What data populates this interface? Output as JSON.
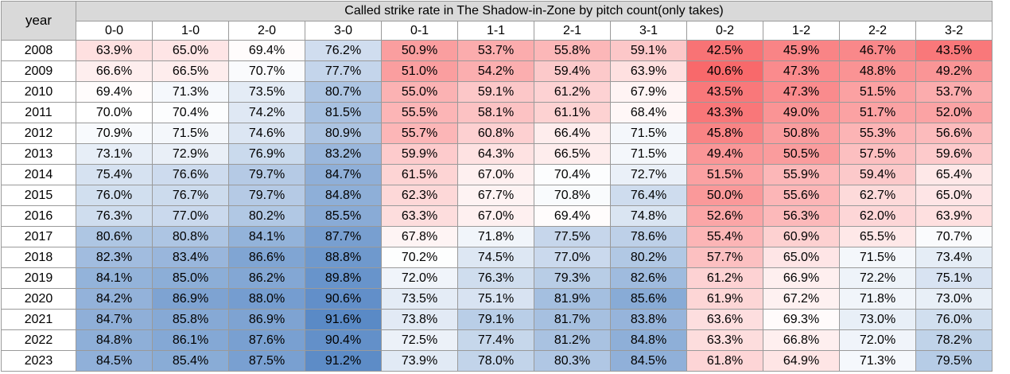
{
  "chart_data": {
    "type": "heatmap",
    "title": "Called strike rate in The Shadow-in-Zone by pitch count(only takes)",
    "row_header": "year",
    "columns": [
      "0-0",
      "1-0",
      "2-0",
      "3-0",
      "0-1",
      "1-1",
      "2-1",
      "3-1",
      "0-2",
      "1-2",
      "2-2",
      "3-2"
    ],
    "rows": [
      "2008",
      "2009",
      "2010",
      "2011",
      "2012",
      "2013",
      "2014",
      "2015",
      "2016",
      "2017",
      "2018",
      "2019",
      "2020",
      "2021",
      "2022",
      "2023"
    ],
    "values": [
      [
        63.9,
        65.0,
        69.4,
        76.2,
        50.9,
        53.7,
        55.8,
        59.1,
        42.5,
        45.9,
        46.7,
        43.5
      ],
      [
        66.6,
        66.5,
        70.7,
        77.7,
        51.0,
        54.2,
        59.4,
        63.9,
        40.6,
        47.3,
        48.8,
        49.2
      ],
      [
        69.4,
        71.3,
        73.5,
        80.7,
        55.0,
        59.1,
        61.2,
        67.9,
        43.5,
        47.3,
        51.5,
        53.7
      ],
      [
        70.0,
        70.4,
        74.2,
        81.5,
        55.5,
        58.1,
        61.1,
        68.4,
        43.3,
        49.0,
        51.7,
        52.0
      ],
      [
        70.9,
        71.5,
        74.6,
        80.9,
        55.7,
        60.8,
        66.4,
        71.5,
        45.8,
        50.8,
        55.3,
        56.6
      ],
      [
        73.1,
        72.9,
        76.9,
        83.2,
        59.9,
        64.3,
        66.5,
        71.5,
        49.4,
        50.5,
        57.5,
        59.6
      ],
      [
        75.4,
        76.6,
        79.7,
        84.7,
        61.5,
        67.0,
        70.4,
        72.7,
        51.5,
        55.9,
        59.4,
        65.4
      ],
      [
        76.0,
        76.7,
        79.7,
        84.8,
        62.3,
        67.7,
        70.8,
        76.4,
        50.0,
        55.6,
        62.7,
        65.0
      ],
      [
        76.3,
        77.0,
        80.2,
        85.5,
        63.3,
        67.0,
        69.4,
        74.8,
        52.6,
        56.3,
        62.0,
        63.9
      ],
      [
        80.6,
        80.8,
        84.1,
        87.7,
        67.8,
        71.8,
        77.5,
        78.6,
        55.4,
        60.9,
        65.5,
        70.7
      ],
      [
        82.3,
        83.4,
        86.6,
        88.8,
        70.2,
        74.5,
        77.0,
        80.2,
        57.7,
        65.0,
        71.5,
        73.4
      ],
      [
        84.1,
        85.0,
        86.2,
        89.8,
        72.0,
        76.3,
        79.3,
        82.6,
        61.2,
        66.9,
        72.2,
        75.1
      ],
      [
        84.2,
        86.9,
        88.0,
        90.6,
        73.5,
        75.1,
        81.9,
        85.6,
        61.9,
        67.2,
        71.8,
        73.0
      ],
      [
        84.7,
        85.8,
        86.9,
        91.6,
        73.8,
        79.1,
        81.7,
        83.8,
        63.6,
        69.3,
        73.0,
        76.0
      ],
      [
        84.8,
        86.1,
        87.6,
        90.4,
        72.5,
        77.4,
        81.2,
        84.8,
        63.3,
        66.8,
        72.0,
        78.2
      ],
      [
        84.5,
        85.4,
        87.5,
        91.2,
        73.9,
        78.0,
        80.3,
        84.5,
        61.8,
        64.9,
        71.3,
        79.5
      ]
    ],
    "value_suffix": "%",
    "value_decimals": 1,
    "color_scale": {
      "low": "#f8696b",
      "mid": "#ffffff",
      "high": "#5a8ac6",
      "min": 40.6,
      "mid_value": 70.0,
      "max": 91.6
    }
  }
}
